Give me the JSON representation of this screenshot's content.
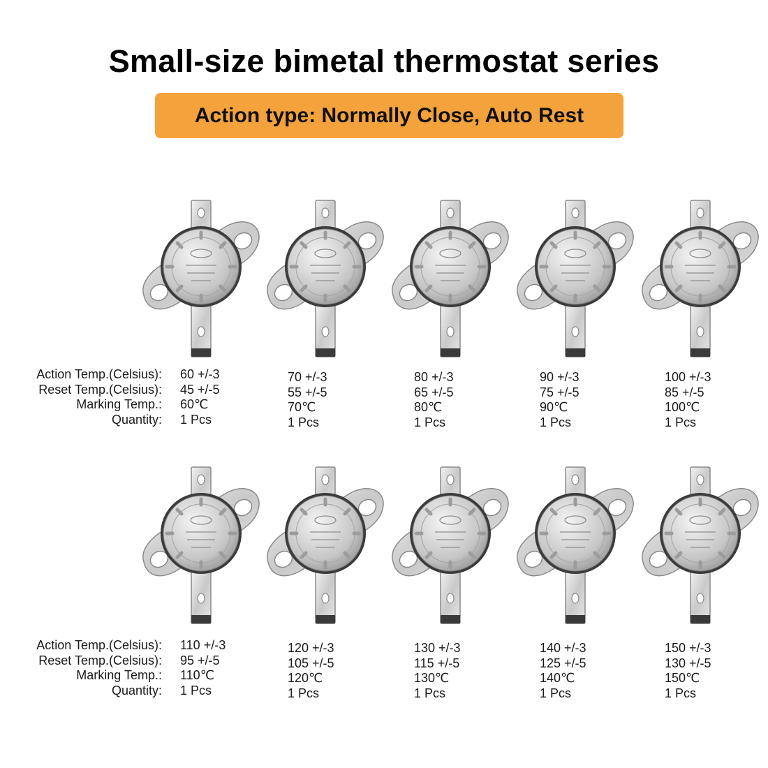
{
  "title": "Small-size bimetal thermostat series",
  "banner": "Action type: Normally Close, Auto Rest",
  "labels": {
    "action": "Action Temp.(Celsius):",
    "reset": "Reset  Temp.(Celsius):",
    "marking": "Marking Temp.:",
    "quantity": "Quantity:"
  },
  "icons": {
    "product": "thermostat-icon"
  },
  "colors": {
    "banner": "#f4a23c",
    "title": "#000000"
  },
  "rows": [
    [
      {
        "action": "60 +/-3",
        "reset": "45 +/-5",
        "marking": "60℃",
        "quantity": "1 Pcs"
      },
      {
        "action": "70 +/-3",
        "reset": "55 +/-5",
        "marking": "70℃",
        "quantity": "1 Pcs"
      },
      {
        "action": "80 +/-3",
        "reset": "65 +/-5",
        "marking": "80℃",
        "quantity": "1 Pcs"
      },
      {
        "action": "90 +/-3",
        "reset": "75 +/-5",
        "marking": "90℃",
        "quantity": "1 Pcs"
      },
      {
        "action": "100 +/-3",
        "reset": "85 +/-5",
        "marking": "100℃",
        "quantity": "1 Pcs"
      }
    ],
    [
      {
        "action": "110 +/-3",
        "reset": "95 +/-5",
        "marking": "110℃",
        "quantity": "1 Pcs"
      },
      {
        "action": "120 +/-3",
        "reset": "105 +/-5",
        "marking": "120℃",
        "quantity": "1 Pcs"
      },
      {
        "action": "130 +/-3",
        "reset": "115 +/-5",
        "marking": "130℃",
        "quantity": "1 Pcs"
      },
      {
        "action": "140 +/-3",
        "reset": "125 +/-5",
        "marking": "140℃",
        "quantity": "1 Pcs"
      },
      {
        "action": "150 +/-3",
        "reset": "130 +/-5",
        "marking": "150℃",
        "quantity": "1 Pcs"
      }
    ]
  ]
}
